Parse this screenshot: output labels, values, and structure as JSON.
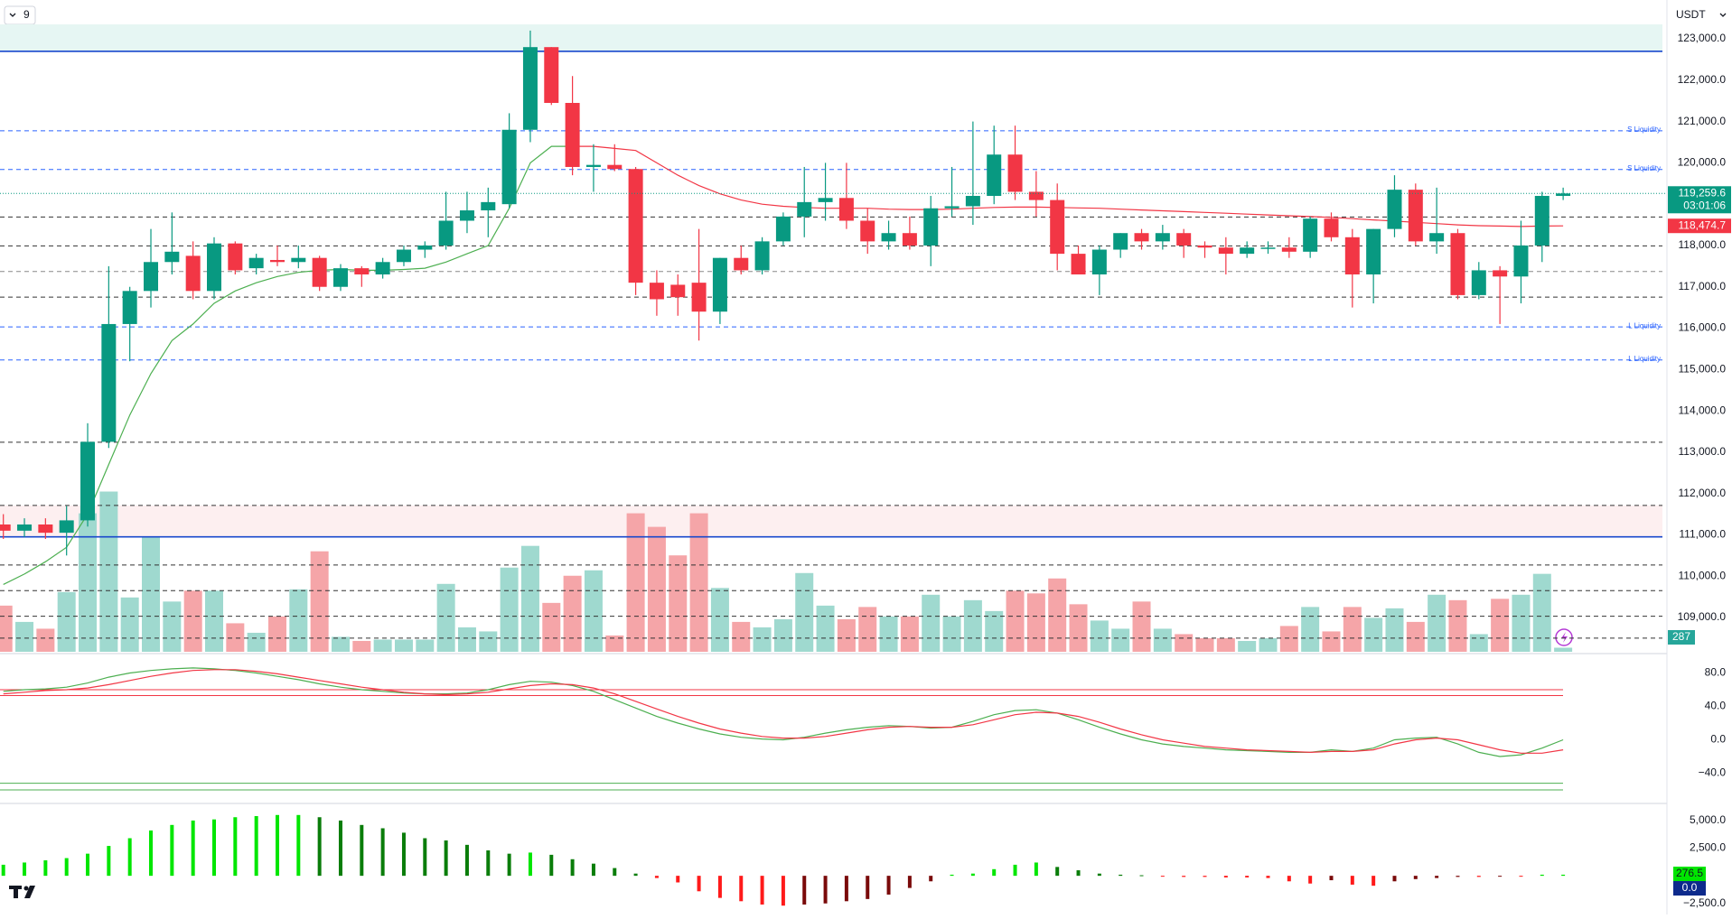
{
  "toolbar": {
    "interval": "9",
    "currency": "USDT"
  },
  "chart_data": [
    {
      "type": "candlestick",
      "up_color": "#089981",
      "down_color": "#f23645",
      "open": [
        111250,
        111100,
        111250,
        111050,
        111350,
        113250,
        116100,
        116900,
        117600,
        117750,
        116900,
        118050,
        117450,
        117650,
        117600,
        117700,
        117000,
        117450,
        117300,
        117600,
        117900,
        118000,
        118600,
        118850,
        119000,
        120800,
        122800,
        121450,
        119900,
        119950,
        119850,
        117100,
        117050,
        117100,
        116400,
        117700,
        117400,
        118100,
        118700,
        119050,
        119150,
        118600,
        118100,
        118300,
        118000,
        118900,
        118950,
        119200,
        120200,
        119300,
        119100,
        117800,
        117300,
        117900,
        118300,
        118100,
        118300,
        118000,
        117950,
        117800,
        117950,
        117950,
        117850,
        118650,
        118200,
        117300,
        118400,
        119350,
        118100,
        118300,
        116800,
        117400,
        117250,
        118000,
        119200
      ],
      "high": [
        111500,
        111400,
        111400,
        111700,
        113700,
        117500,
        117000,
        118400,
        118800,
        118100,
        118200,
        118100,
        117800,
        118000,
        118000,
        117750,
        117550,
        117500,
        117700,
        118000,
        118100,
        119300,
        119300,
        119400,
        121200,
        123200,
        122800,
        122100,
        120450,
        120450,
        119900,
        117400,
        117300,
        118400,
        117700,
        118000,
        118200,
        118800,
        119900,
        120000,
        120000,
        118900,
        118600,
        118700,
        119200,
        119900,
        121000,
        120900,
        120900,
        119800,
        119500,
        118000,
        118000,
        118300,
        118400,
        118500,
        118400,
        118100,
        118200,
        118100,
        118100,
        118200,
        118700,
        118800,
        118400,
        118400,
        119700,
        119500,
        119400,
        118400,
        117600,
        117500,
        118600,
        119300,
        119400
      ],
      "low": [
        110900,
        110950,
        110900,
        110500,
        111200,
        113100,
        115200,
        116500,
        117300,
        116700,
        116700,
        117300,
        117300,
        117500,
        117450,
        116900,
        116900,
        117000,
        117200,
        117500,
        117700,
        117900,
        118300,
        118200,
        118900,
        120500,
        121400,
        119700,
        119300,
        119800,
        116800,
        116300,
        116300,
        115700,
        116100,
        117300,
        117300,
        118000,
        118200,
        118600,
        118400,
        117800,
        117900,
        117900,
        117500,
        118700,
        118500,
        119000,
        119100,
        118700,
        117400,
        117300,
        116800,
        117700,
        117900,
        117900,
        117700,
        117700,
        117300,
        117700,
        117800,
        117700,
        117700,
        118100,
        116500,
        116600,
        118200,
        118000,
        117800,
        116700,
        116700,
        116100,
        116600,
        117600,
        119100
      ],
      "close": [
        111100,
        111250,
        111050,
        111350,
        113250,
        116100,
        116900,
        117600,
        117850,
        116900,
        118050,
        117400,
        117700,
        117600,
        117700,
        117000,
        117450,
        117300,
        117600,
        117900,
        118000,
        118600,
        118850,
        119050,
        120800,
        122800,
        121450,
        119900,
        119950,
        119850,
        117100,
        116700,
        116750,
        116400,
        117700,
        117400,
        118100,
        118700,
        119050,
        119150,
        118600,
        118100,
        118300,
        118000,
        118900,
        118950,
        119200,
        120200,
        119300,
        119100,
        117800,
        117300,
        117900,
        118300,
        118100,
        118300,
        118000,
        117950,
        117800,
        117950,
        117950,
        117850,
        118650,
        118200,
        117300,
        118400,
        119350,
        118100,
        118300,
        116800,
        117400,
        117250,
        118000,
        119200,
        119259.6
      ],
      "ylim": [
        108170,
        123940
      ],
      "yticks": [
        {
          "value": 123000,
          "label": "123,000.0"
        },
        {
          "value": 122000,
          "label": "122,000.0"
        },
        {
          "value": 121000,
          "label": "121,000.0"
        },
        {
          "value": 120000,
          "label": "120,000.0"
        },
        {
          "value": 119000,
          "label": "119,000.0"
        },
        {
          "value": 118000,
          "label": "118,000.0"
        },
        {
          "value": 117000,
          "label": "117,000.0"
        },
        {
          "value": 116000,
          "label": "116,000.0"
        },
        {
          "value": 115000,
          "label": "115,000.0"
        },
        {
          "value": 114000,
          "label": "114,000.0"
        },
        {
          "value": 113000,
          "label": "113,000.0"
        },
        {
          "value": 112000,
          "label": "112,000.0"
        },
        {
          "value": 111000,
          "label": "111,000.0"
        },
        {
          "value": 110000,
          "label": "110,000.0"
        },
        {
          "value": 109000,
          "label": "109,000.0"
        }
      ],
      "zones": [
        {
          "from": 123350,
          "to": 122700,
          "color": "#e6f6f3"
        },
        {
          "from": 111710,
          "to": 110940,
          "color": "#fdeff0"
        }
      ],
      "levels": [
        {
          "value": 122700,
          "color": "#1848cc",
          "style": "solid"
        },
        {
          "value": 110950,
          "color": "#1848cc",
          "style": "solid"
        },
        {
          "value": 118690,
          "color": "#333333",
          "style": "dashed"
        },
        {
          "value": 117990,
          "color": "#333333",
          "style": "dashed"
        },
        {
          "value": 117370,
          "color": "#888888",
          "style": "dashed"
        },
        {
          "value": 116750,
          "color": "#333333",
          "style": "dashed"
        },
        {
          "value": 113240,
          "color": "#333333",
          "style": "dashed"
        },
        {
          "value": 111710,
          "color": "#333333",
          "style": "dashed"
        },
        {
          "value": 110270,
          "color": "#333333",
          "style": "dashed"
        },
        {
          "value": 109650,
          "color": "#333333",
          "style": "dashed"
        },
        {
          "value": 109030,
          "color": "#333333",
          "style": "dashed"
        },
        {
          "value": 108500,
          "color": "#333333",
          "style": "dashed"
        },
        {
          "value": 120775,
          "color": "#2962ff",
          "style": "dashed",
          "label": "S Liquidity"
        },
        {
          "value": 119840,
          "color": "#2962ff",
          "style": "dashed",
          "label": "S Liquidity"
        },
        {
          "value": 116030,
          "color": "#2962ff",
          "style": "dashed",
          "label": "L Liquidity"
        },
        {
          "value": 115230,
          "color": "#2962ff",
          "style": "dashed",
          "label": "L Liquidity"
        }
      ],
      "ma": [
        {
          "color": "#4caf50",
          "values": [
            109800,
            110050,
            110350,
            110700,
            111500,
            112700,
            113900,
            114900,
            115700,
            116100,
            116600,
            116900,
            117100,
            117250,
            117350,
            117400,
            117420,
            117400,
            117400,
            117420,
            117450,
            117600,
            117800,
            118000,
            118900,
            120000,
            120400,
            120400,
            null,
            null,
            null,
            null,
            null,
            null,
            null,
            null,
            null,
            null,
            null,
            null,
            null,
            null,
            null,
            null,
            null,
            null,
            null,
            null,
            null,
            null,
            null,
            null,
            null,
            null,
            null,
            null,
            null,
            null,
            null,
            null,
            null,
            null,
            null,
            null,
            null,
            null,
            null,
            null,
            null,
            null,
            null,
            null,
            null,
            null,
            null
          ]
        },
        {
          "color": "#f23645",
          "values": [
            null,
            null,
            null,
            null,
            null,
            null,
            null,
            null,
            null,
            null,
            null,
            null,
            null,
            null,
            null,
            null,
            null,
            null,
            null,
            null,
            null,
            null,
            null,
            null,
            null,
            null,
            null,
            120400,
            120400,
            120350,
            120300,
            120000,
            119700,
            119450,
            119250,
            119100,
            119000,
            118950,
            118920,
            118900,
            118900,
            118900,
            118880,
            118870,
            118870,
            118880,
            118900,
            118920,
            118930,
            118930,
            118920,
            118910,
            118900,
            118880,
            118860,
            118840,
            118820,
            118800,
            118780,
            118760,
            118740,
            118720,
            118700,
            118680,
            118650,
            118620,
            118590,
            118560,
            118530,
            118500,
            118480,
            118470,
            118460,
            118470,
            118474.7
          ]
        }
      ],
      "price_tags": [
        {
          "value": 119259.6,
          "label": "119,259.6",
          "color": "#089981"
        },
        {
          "value": 118474.7,
          "label": "118,474.7",
          "color": "#f23645"
        }
      ],
      "countdown": "03:01:06",
      "volume": {
        "ylim": [
          0,
          2400
        ],
        "up_color": "#9fd9cf",
        "down_color": "#f5a5a8",
        "values": [
          170,
          110,
          85,
          220,
          510,
          590,
          200,
          425,
          185,
          225,
          225,
          105,
          70,
          130,
          230,
          370,
          55,
          40,
          45,
          45,
          45,
          250,
          90,
          75,
          310,
          390,
          180,
          280,
          300,
          60,
          510,
          460,
          355,
          510,
          235,
          110,
          90,
          120,
          290,
          170,
          120,
          165,
          130,
          130,
          210,
          130,
          190,
          150,
          225,
          215,
          270,
          175,
          115,
          85,
          185,
          85,
          65,
          50,
          50,
          40,
          50,
          95,
          165,
          75,
          165,
          125,
          160,
          110,
          210,
          190,
          65,
          195,
          210,
          287,
          15
        ]
      }
    },
    {
      "type": "line",
      "ylim": [
        -73,
        100
      ],
      "yticks": [
        {
          "value": 80,
          "label": "80.0"
        },
        {
          "value": 40,
          "label": "40.0"
        },
        {
          "value": 0,
          "label": "0.0"
        },
        {
          "value": -40,
          "label": "−40.0"
        }
      ],
      "levels": [
        {
          "value": 60,
          "color": "#f23645"
        },
        {
          "value": 53,
          "color": "#f23645"
        },
        {
          "value": -52,
          "color": "#4caf50"
        },
        {
          "value": -60,
          "color": "#4caf50"
        }
      ],
      "series": [
        {
          "color": "#4caf50",
          "values": [
            58,
            60,
            61,
            63,
            68,
            75,
            80,
            83,
            85,
            86,
            85,
            83,
            80,
            76,
            72,
            67,
            63,
            60,
            58,
            56,
            55,
            55,
            56,
            60,
            66,
            70,
            69,
            65,
            58,
            48,
            38,
            28,
            20,
            13,
            7,
            3,
            1,
            0,
            3,
            8,
            12,
            15,
            17,
            16,
            14,
            15,
            22,
            30,
            35,
            36,
            32,
            24,
            15,
            7,
            0,
            -5,
            -8,
            -10,
            -12,
            -13,
            -14,
            -15,
            -15,
            -12,
            -14,
            -10,
            0,
            2,
            3,
            -5,
            -15,
            -20,
            -18,
            -10,
            0
          ]
        },
        {
          "color": "#f23645",
          "values": [
            55,
            57,
            59,
            60,
            62,
            66,
            71,
            76,
            80,
            83,
            84,
            84,
            82,
            79,
            75,
            71,
            67,
            63,
            60,
            57,
            55,
            54,
            55,
            57,
            61,
            65,
            67,
            66,
            62,
            55,
            46,
            37,
            28,
            20,
            13,
            8,
            4,
            2,
            2,
            4,
            8,
            12,
            15,
            16,
            15,
            15,
            18,
            24,
            30,
            33,
            32,
            28,
            21,
            13,
            6,
            0,
            -4,
            -8,
            -10,
            -12,
            -13,
            -14,
            -15,
            -14,
            -14,
            -12,
            -5,
            0,
            2,
            0,
            -6,
            -12,
            -16,
            -16,
            -12
          ]
        }
      ]
    },
    {
      "type": "bar",
      "ylim": [
        -3500,
        6300
      ],
      "yticks": [
        {
          "value": 5000,
          "label": "5,000.0"
        },
        {
          "value": 2500,
          "label": "2,500.0"
        },
        {
          "value": -2500,
          "label": "−2,500.0"
        }
      ],
      "colors": {
        "up_rising": "#00e600",
        "up_falling": "#0a7d0a",
        "down_falling": "#ff1a1a",
        "down_rising": "#7a0a0a"
      },
      "values": [
        1000,
        1200,
        1400,
        1600,
        2000,
        2700,
        3400,
        4100,
        4600,
        5000,
        5100,
        5300,
        5400,
        5500,
        5500,
        5300,
        5000,
        4600,
        4300,
        3900,
        3400,
        3200,
        2800,
        2300,
        2000,
        2100,
        1900,
        1500,
        1100,
        700,
        200,
        -200,
        -600,
        -1400,
        -2000,
        -2300,
        -2600,
        -2700,
        -2600,
        -2500,
        -2300,
        -2100,
        -1700,
        -1100,
        -500,
        100,
        200,
        600,
        1000,
        1200,
        800,
        500,
        200,
        100,
        50,
        -50,
        -100,
        -100,
        -150,
        -150,
        -200,
        -500,
        -700,
        -400,
        -800,
        -900,
        -500,
        -300,
        -200,
        -100,
        -100,
        -50,
        -50,
        100,
        100
      ],
      "badges": [
        {
          "value": 276.5,
          "color": "#00e600"
        },
        {
          "value": 0,
          "label": "0.0",
          "color": "#0d2a8c"
        }
      ]
    }
  ]
}
